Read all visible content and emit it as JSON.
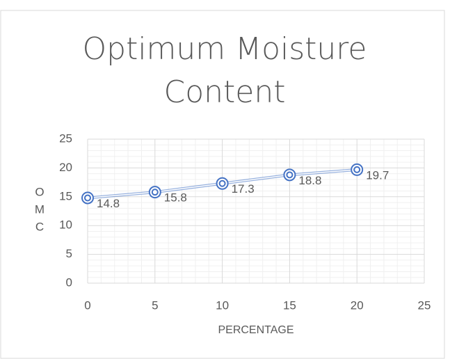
{
  "chart_data": {
    "type": "scatter",
    "title": "Optimum Moisture Content",
    "x_label": "PERCENTAGE",
    "y_label": "OMC",
    "series": [
      {
        "name": "OMC",
        "color": "#4472c4",
        "x": [
          0,
          5,
          10,
          15,
          20
        ],
        "values": [
          14.8,
          15.8,
          17.3,
          18.8,
          19.7
        ]
      }
    ],
    "xlim": [
      0,
      25
    ],
    "xticks": [
      0,
      5,
      10,
      15,
      20,
      25
    ],
    "ylim": [
      0,
      25
    ],
    "yticks": [
      0,
      5,
      10,
      15,
      20,
      25
    ],
    "grid": true,
    "minor_grid": true,
    "lines": true,
    "data_labels": true
  }
}
